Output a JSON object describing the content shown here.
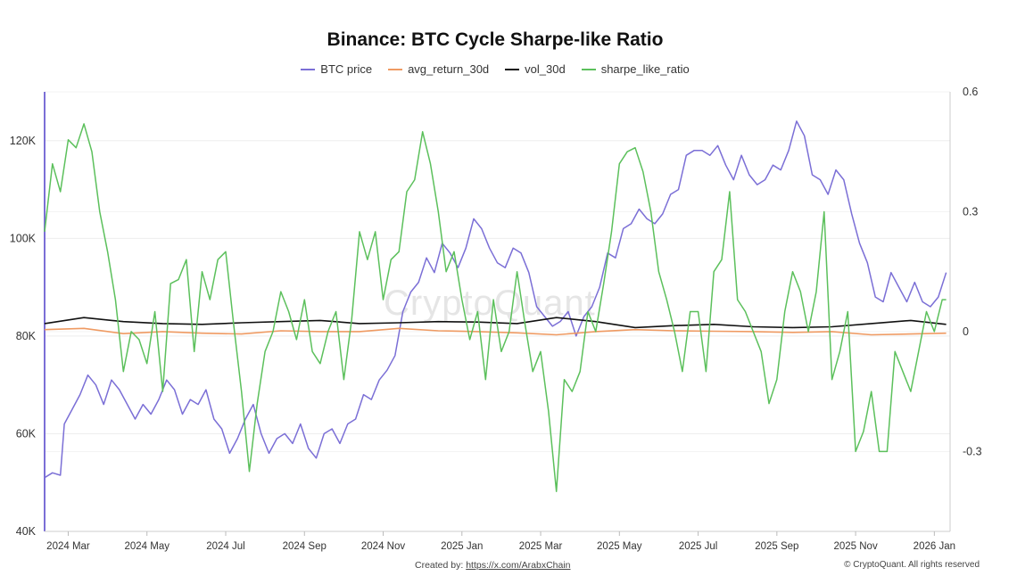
{
  "title": "Binance: BTC Cycle Sharpe-like Ratio",
  "watermark": "CryptoQuant",
  "footer": {
    "created_by_label": "Created by:",
    "created_by_link": "https://x.com/ArabxChain",
    "copyright": "© CryptoQuant. All rights reserved"
  },
  "legend": [
    {
      "name": "BTC price",
      "color": "#7b6fd6"
    },
    {
      "name": "avg_return_30d",
      "color": "#ef9a62"
    },
    {
      "name": "vol_30d",
      "color": "#111111"
    },
    {
      "name": "sharpe_like_ratio",
      "color": "#5cc05c"
    }
  ],
  "chart_data": {
    "type": "line",
    "x_ticks": [
      "2024 Mar",
      "2024 May",
      "2024 Jul",
      "2024 Sep",
      "2024 Nov",
      "2025 Jan",
      "2025 Mar",
      "2025 May",
      "2025 Jul",
      "2025 Sep",
      "2025 Nov",
      "2026 Jan"
    ],
    "x_tick_positions": [
      0.6,
      2.6,
      4.6,
      6.6,
      8.6,
      10.6,
      12.6,
      14.6,
      16.6,
      18.6,
      20.6,
      22.6
    ],
    "x_range": [
      0,
      23.0
    ],
    "y_left": {
      "ticks": [
        "40K",
        "60K",
        "80K",
        "100K",
        "120K"
      ],
      "values": [
        40000,
        60000,
        80000,
        100000,
        120000
      ],
      "range": [
        40000,
        130000
      ]
    },
    "y_right": {
      "ticks": [
        "-0.3",
        "0",
        "0.3",
        "0.6"
      ],
      "values": [
        -0.3,
        0,
        0.3,
        0.6
      ],
      "range": [
        -0.5,
        0.6
      ]
    },
    "grid": true,
    "legend_position": "top-center",
    "series": [
      {
        "name": "BTC price",
        "axis": "left",
        "color": "#7b6fd6",
        "x": [
          0.0,
          0.2,
          0.4,
          0.5,
          0.7,
          0.9,
          1.1,
          1.3,
          1.5,
          1.7,
          1.9,
          2.1,
          2.3,
          2.5,
          2.7,
          2.9,
          3.1,
          3.3,
          3.5,
          3.7,
          3.9,
          4.1,
          4.3,
          4.5,
          4.7,
          4.9,
          5.1,
          5.3,
          5.5,
          5.7,
          5.9,
          6.1,
          6.3,
          6.5,
          6.7,
          6.9,
          7.1,
          7.3,
          7.5,
          7.7,
          7.9,
          8.1,
          8.3,
          8.5,
          8.7,
          8.9,
          9.1,
          9.3,
          9.5,
          9.7,
          9.9,
          10.1,
          10.3,
          10.5,
          10.7,
          10.9,
          11.1,
          11.3,
          11.5,
          11.7,
          11.9,
          12.1,
          12.3,
          12.5,
          12.7,
          12.9,
          13.1,
          13.3,
          13.5,
          13.7,
          13.9,
          14.1,
          14.3,
          14.5,
          14.7,
          14.9,
          15.1,
          15.3,
          15.5,
          15.7,
          15.9,
          16.1,
          16.3,
          16.5,
          16.7,
          16.9,
          17.1,
          17.3,
          17.5,
          17.7,
          17.9,
          18.1,
          18.3,
          18.5,
          18.7,
          18.9,
          19.1,
          19.3,
          19.5,
          19.7,
          19.9,
          20.1,
          20.3,
          20.5,
          20.7,
          20.9,
          21.1,
          21.3,
          21.5,
          21.7,
          21.9,
          22.1,
          22.3,
          22.5,
          22.7,
          22.9
        ],
        "values": [
          51000,
          52000,
          51500,
          62000,
          65000,
          68000,
          72000,
          70000,
          66000,
          71000,
          69000,
          66000,
          63000,
          66000,
          64000,
          67000,
          71000,
          69000,
          64000,
          67000,
          66000,
          69000,
          63000,
          61000,
          56000,
          59000,
          63000,
          66000,
          60000,
          56000,
          59000,
          60000,
          58000,
          62000,
          57000,
          55000,
          60000,
          61000,
          58000,
          62000,
          63000,
          68000,
          67000,
          71000,
          73000,
          76000,
          85000,
          89000,
          91000,
          96000,
          93000,
          99000,
          97000,
          94000,
          98000,
          104000,
          102000,
          98000,
          95000,
          94000,
          98000,
          97000,
          93000,
          86000,
          84000,
          82000,
          83000,
          85000,
          80000,
          84000,
          86000,
          90000,
          97000,
          96000,
          102000,
          103000,
          106000,
          104000,
          103000,
          105000,
          109000,
          110000,
          117000,
          118000,
          118000,
          117000,
          119000,
          115000,
          112000,
          117000,
          113000,
          111000,
          112000,
          115000,
          114000,
          118000,
          124000,
          121000,
          113000,
          112000,
          109000,
          114000,
          112000,
          105000,
          99000,
          95000,
          88000,
          87000,
          93000,
          90000,
          87000,
          91000,
          87000,
          86000,
          88000,
          93000
        ]
      },
      {
        "name": "avg_return_30d",
        "axis": "right",
        "color": "#ef9a62",
        "x": [
          0.0,
          1.0,
          2.0,
          3.0,
          4.0,
          5.0,
          6.0,
          7.0,
          8.0,
          9.0,
          10.0,
          11.0,
          12.0,
          13.0,
          14.0,
          15.0,
          16.0,
          17.0,
          18.0,
          19.0,
          20.0,
          21.0,
          22.0,
          22.9
        ],
        "values": [
          0.005,
          0.008,
          -0.005,
          0.0,
          -0.004,
          -0.006,
          0.002,
          0.0,
          0.0,
          0.008,
          0.002,
          0.0,
          -0.003,
          -0.008,
          0.0,
          0.005,
          0.002,
          0.001,
          0.0,
          -0.002,
          0.0,
          -0.008,
          -0.006,
          -0.004
        ]
      },
      {
        "name": "vol_30d",
        "axis": "right",
        "color": "#111111",
        "x": [
          0.0,
          1.0,
          2.0,
          3.0,
          4.0,
          5.0,
          6.0,
          7.0,
          8.0,
          9.0,
          10.0,
          11.0,
          12.0,
          13.0,
          14.0,
          15.0,
          16.0,
          17.0,
          18.0,
          19.0,
          20.0,
          21.0,
          22.0,
          22.9
        ],
        "values": [
          0.02,
          0.035,
          0.025,
          0.02,
          0.018,
          0.022,
          0.025,
          0.028,
          0.02,
          0.022,
          0.025,
          0.024,
          0.02,
          0.035,
          0.025,
          0.01,
          0.015,
          0.018,
          0.012,
          0.01,
          0.012,
          0.02,
          0.028,
          0.018
        ]
      },
      {
        "name": "sharpe_like_ratio",
        "axis": "right",
        "color": "#5cc05c",
        "x": [
          0.0,
          0.2,
          0.4,
          0.6,
          0.8,
          1.0,
          1.2,
          1.4,
          1.6,
          1.8,
          2.0,
          2.2,
          2.4,
          2.6,
          2.8,
          3.0,
          3.2,
          3.4,
          3.6,
          3.8,
          4.0,
          4.2,
          4.4,
          4.6,
          4.8,
          5.0,
          5.2,
          5.4,
          5.6,
          5.8,
          6.0,
          6.2,
          6.4,
          6.6,
          6.8,
          7.0,
          7.2,
          7.4,
          7.6,
          7.8,
          8.0,
          8.2,
          8.4,
          8.6,
          8.8,
          9.0,
          9.2,
          9.4,
          9.6,
          9.8,
          10.0,
          10.2,
          10.4,
          10.6,
          10.8,
          11.0,
          11.2,
          11.4,
          11.6,
          11.8,
          12.0,
          12.2,
          12.4,
          12.6,
          12.8,
          13.0,
          13.2,
          13.4,
          13.6,
          13.8,
          14.0,
          14.2,
          14.4,
          14.6,
          14.8,
          15.0,
          15.2,
          15.4,
          15.6,
          15.8,
          16.0,
          16.2,
          16.4,
          16.6,
          16.8,
          17.0,
          17.2,
          17.4,
          17.6,
          17.8,
          18.0,
          18.2,
          18.4,
          18.6,
          18.8,
          19.0,
          19.2,
          19.4,
          19.6,
          19.8,
          20.0,
          20.2,
          20.4,
          20.6,
          20.8,
          21.0,
          21.2,
          21.4,
          21.6,
          21.8,
          22.0,
          22.2,
          22.4,
          22.6,
          22.8,
          22.9
        ],
        "values": [
          0.25,
          0.42,
          0.35,
          0.48,
          0.46,
          0.52,
          0.45,
          0.3,
          0.2,
          0.08,
          -0.1,
          0.0,
          -0.02,
          -0.08,
          0.05,
          -0.15,
          0.12,
          0.13,
          0.18,
          -0.05,
          0.15,
          0.08,
          0.18,
          0.2,
          0.02,
          -0.15,
          -0.35,
          -0.18,
          -0.05,
          0.0,
          0.1,
          0.05,
          -0.02,
          0.08,
          -0.05,
          -0.08,
          0.0,
          0.05,
          -0.12,
          0.03,
          0.25,
          0.18,
          0.25,
          0.08,
          0.18,
          0.2,
          0.35,
          0.38,
          0.5,
          0.42,
          0.3,
          0.15,
          0.2,
          0.08,
          -0.02,
          0.05,
          -0.12,
          0.08,
          -0.05,
          0.0,
          0.15,
          0.02,
          -0.1,
          -0.05,
          -0.2,
          -0.4,
          -0.12,
          -0.15,
          -0.1,
          0.05,
          0.0,
          0.12,
          0.25,
          0.42,
          0.45,
          0.46,
          0.4,
          0.3,
          0.15,
          0.08,
          0.0,
          -0.1,
          0.05,
          0.05,
          -0.1,
          0.15,
          0.18,
          0.35,
          0.08,
          0.05,
          0.0,
          -0.05,
          -0.18,
          -0.12,
          0.05,
          0.15,
          0.1,
          0.0,
          0.1,
          0.3,
          -0.12,
          -0.05,
          0.05,
          -0.3,
          -0.25,
          -0.15,
          -0.3,
          -0.3,
          -0.05,
          -0.1,
          -0.15,
          -0.05,
          0.05,
          0.0,
          0.08,
          0.08
        ]
      }
    ]
  }
}
